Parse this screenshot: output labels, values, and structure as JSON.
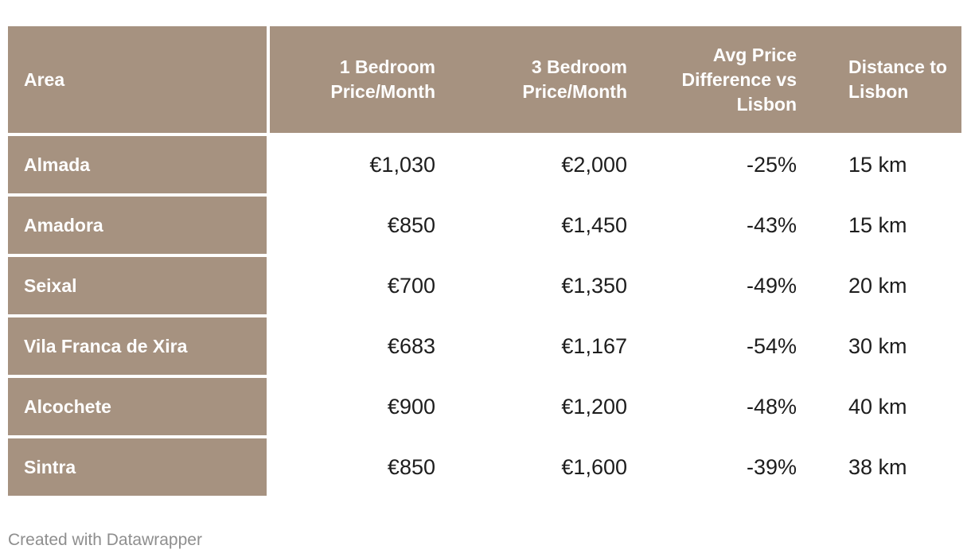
{
  "table": {
    "columns": [
      {
        "key": "area",
        "label": "Area"
      },
      {
        "key": "one_bedroom",
        "label": "1 Bedroom Price/Month"
      },
      {
        "key": "three_bedroom",
        "label": "3 Bedroom Price/Month"
      },
      {
        "key": "diff",
        "label": "Avg Price Difference vs Lisbon"
      },
      {
        "key": "distance",
        "label": "Distance to Lisbon"
      }
    ],
    "rows": [
      {
        "area": "Almada",
        "one_bedroom": "€1,030",
        "three_bedroom": "€2,000",
        "diff": "-25%",
        "distance": "15 km"
      },
      {
        "area": "Amadora",
        "one_bedroom": "€850",
        "three_bedroom": "€1,450",
        "diff": "-43%",
        "distance": "15 km"
      },
      {
        "area": "Seixal",
        "one_bedroom": "€700",
        "three_bedroom": "€1,350",
        "diff": "-49%",
        "distance": "20 km"
      },
      {
        "area": "Vila Franca de Xira",
        "one_bedroom": "€683",
        "three_bedroom": "€1,167",
        "diff": "-54%",
        "distance": "30 km"
      },
      {
        "area": "Alcochete",
        "one_bedroom": "€900",
        "three_bedroom": "€1,200",
        "diff": "-48%",
        "distance": "40 km"
      },
      {
        "area": "Sintra",
        "one_bedroom": "€850",
        "three_bedroom": "€1,600",
        "diff": "-39%",
        "distance": "38 km"
      }
    ]
  },
  "footer": {
    "attribution": "Created with Datawrapper"
  },
  "colors": {
    "header_bg": "#a69280",
    "row_label_bg": "#a69280",
    "header_text": "#ffffff",
    "value_text": "#1d1d1d",
    "attribution_text": "#8e8e8e",
    "page_bg": "#ffffff"
  },
  "chart_data": {
    "type": "table",
    "title": "",
    "columns": [
      "Area",
      "1 Bedroom Price/Month",
      "3 Bedroom Price/Month",
      "Avg Price Difference vs Lisbon",
      "Distance to Lisbon"
    ],
    "rows": [
      [
        "Almada",
        "€1,030",
        "€2,000",
        "-25%",
        "15 km"
      ],
      [
        "Amadora",
        "€850",
        "€1,450",
        "-43%",
        "15 km"
      ],
      [
        "Seixal",
        "€700",
        "€1,350",
        "-49%",
        "20 km"
      ],
      [
        "Vila Franca de Xira",
        "€683",
        "€1,167",
        "-54%",
        "30 km"
      ],
      [
        "Alcochete",
        "€900",
        "€1,200",
        "-48%",
        "40 km"
      ],
      [
        "Sintra",
        "€850",
        "€1,600",
        "-39%",
        "38 km"
      ]
    ],
    "numeric_values": {
      "one_bedroom_eur": [
        1030,
        850,
        700,
        683,
        900,
        850
      ],
      "three_bedroom_eur": [
        2000,
        1450,
        1350,
        1167,
        1200,
        1600
      ],
      "avg_price_diff_vs_lisbon_pct": [
        -25,
        -43,
        -49,
        -54,
        -48,
        -39
      ],
      "distance_to_lisbon_km": [
        15,
        15,
        20,
        30,
        40,
        38
      ]
    }
  }
}
